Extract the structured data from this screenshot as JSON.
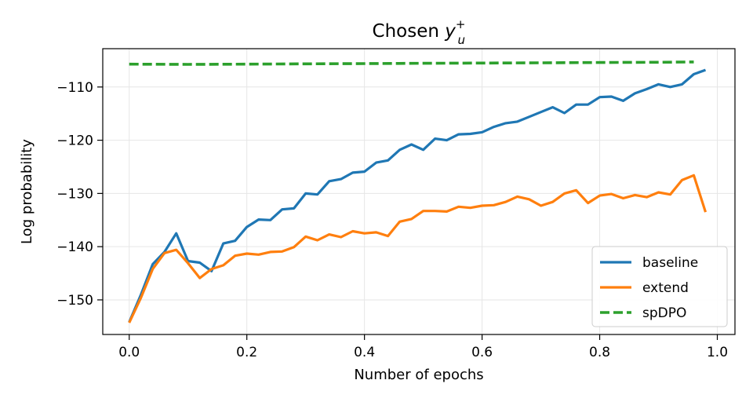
{
  "chart_data": {
    "type": "line",
    "title_main": "Chosen ",
    "title_math_base": "y",
    "title_math_sup": "+",
    "title_math_sub": "u",
    "xlabel": "Number of epochs",
    "ylabel": "Log probability",
    "xlim": [
      -0.045,
      1.03
    ],
    "ylim": [
      -156.5,
      -102.8
    ],
    "xticks": [
      0.0,
      0.2,
      0.4,
      0.6,
      0.8,
      1.0
    ],
    "xtick_labels": [
      "0.0",
      "0.2",
      "0.4",
      "0.6",
      "0.8",
      "1.0"
    ],
    "yticks": [
      -150,
      -140,
      -130,
      -120,
      -110
    ],
    "ytick_labels": [
      "−150",
      "−140",
      "−130",
      "−120",
      "−110"
    ],
    "grid": true,
    "legend_position": "lower-right",
    "series": [
      {
        "name": "baseline",
        "color": "#1f77b4",
        "dash": "solid",
        "x": [
          0.0,
          0.02,
          0.04,
          0.06,
          0.08,
          0.1,
          0.12,
          0.14,
          0.16,
          0.18,
          0.2,
          0.22,
          0.24,
          0.26,
          0.28,
          0.3,
          0.32,
          0.34,
          0.36,
          0.38,
          0.4,
          0.42,
          0.44,
          0.46,
          0.48,
          0.5,
          0.52,
          0.54,
          0.56,
          0.58,
          0.6,
          0.62,
          0.64,
          0.66,
          0.68,
          0.7,
          0.72,
          0.74,
          0.76,
          0.78,
          0.8,
          0.82,
          0.84,
          0.86,
          0.88,
          0.9,
          0.92,
          0.94,
          0.96,
          0.98
        ],
        "y": [
          -154.2,
          -149.0,
          -143.3,
          -141.0,
          -137.5,
          -142.7,
          -143.0,
          -144.6,
          -139.4,
          -138.9,
          -136.3,
          -134.9,
          -135.0,
          -133.0,
          -132.8,
          -130.0,
          -130.2,
          -127.7,
          -127.3,
          -126.1,
          -125.9,
          -124.2,
          -123.8,
          -121.8,
          -120.8,
          -121.8,
          -119.7,
          -120.0,
          -118.9,
          -118.8,
          -118.5,
          -117.5,
          -116.8,
          -116.5,
          -115.6,
          -114.7,
          -113.8,
          -114.9,
          -113.3,
          -113.3,
          -111.9,
          -111.8,
          -112.6,
          -111.2,
          -110.4,
          -109.5,
          -110.0,
          -109.5,
          -107.6,
          -106.8
        ]
      },
      {
        "name": "extend",
        "color": "#ff7f0e",
        "dash": "solid",
        "x": [
          0.0,
          0.02,
          0.04,
          0.06,
          0.08,
          0.1,
          0.12,
          0.14,
          0.16,
          0.18,
          0.2,
          0.22,
          0.24,
          0.26,
          0.28,
          0.3,
          0.32,
          0.34,
          0.36,
          0.38,
          0.4,
          0.42,
          0.44,
          0.46,
          0.48,
          0.5,
          0.52,
          0.54,
          0.56,
          0.58,
          0.6,
          0.62,
          0.64,
          0.66,
          0.68,
          0.7,
          0.72,
          0.74,
          0.76,
          0.78,
          0.8,
          0.82,
          0.84,
          0.86,
          0.88,
          0.9,
          0.92,
          0.94,
          0.96,
          0.98
        ],
        "y": [
          -154.3,
          -149.6,
          -144.2,
          -141.2,
          -140.6,
          -143.1,
          -145.9,
          -144.2,
          -143.5,
          -141.7,
          -141.3,
          -141.5,
          -141.0,
          -140.9,
          -140.1,
          -138.1,
          -138.8,
          -137.7,
          -138.2,
          -137.1,
          -137.5,
          -137.3,
          -138.0,
          -135.3,
          -134.8,
          -133.3,
          -133.3,
          -133.4,
          -132.5,
          -132.7,
          -132.3,
          -132.2,
          -131.6,
          -130.6,
          -131.1,
          -132.3,
          -131.6,
          -130.0,
          -129.4,
          -131.8,
          -130.4,
          -130.1,
          -130.9,
          -130.3,
          -130.7,
          -129.8,
          -130.2,
          -127.5,
          -126.6,
          -133.5
        ]
      },
      {
        "name": "spDPO",
        "color": "#2ca02c",
        "dash": "dashed",
        "x": [
          0.0,
          0.1,
          0.2,
          0.3,
          0.4,
          0.5,
          0.6,
          0.7,
          0.8,
          0.9,
          0.96
        ],
        "y": [
          -105.7,
          -105.75,
          -105.7,
          -105.65,
          -105.6,
          -105.55,
          -105.5,
          -105.45,
          -105.4,
          -105.35,
          -105.3
        ]
      }
    ]
  }
}
